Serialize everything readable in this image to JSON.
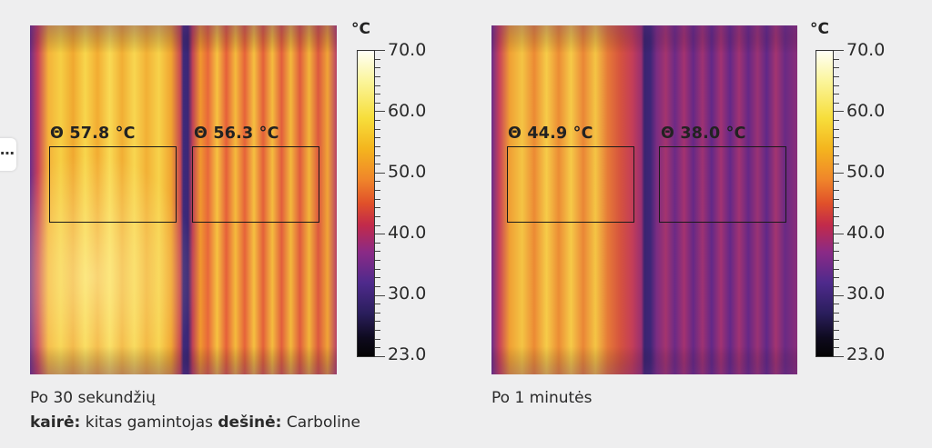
{
  "left_panel": {
    "roi_left_label": "Θ 57.8 °C",
    "roi_right_label": "Θ 56.3 °C",
    "caption_line1": "Po  30 sekundžių",
    "caption_line2": {
      "left_bold": "kairė:",
      "left_text": " kitas gamintojas ",
      "right_bold": "dešinė:",
      "right_text": " Carboline"
    }
  },
  "right_panel": {
    "roi_left_label": "Θ 44.9 °C",
    "roi_right_label": "Θ 38.0 °C",
    "caption_line1": "Po 1 minutės"
  },
  "scale": {
    "unit": "°C",
    "labels": [
      "70.0",
      "60.0",
      "50.0",
      "40.0",
      "30.0",
      "23.0"
    ],
    "min": 23.0,
    "max": 70.0
  },
  "colors": {
    "background": "#eeeeef",
    "hot_white": "#fffff6",
    "hot_yellow": "#f7de3b",
    "orange": "#f0862a",
    "magenta": "#c22a4a",
    "purple": "#4e2a8c",
    "black": "#040404"
  },
  "side_handle": {
    "glyph": "⋯",
    "icon": "more-dots-icon"
  }
}
